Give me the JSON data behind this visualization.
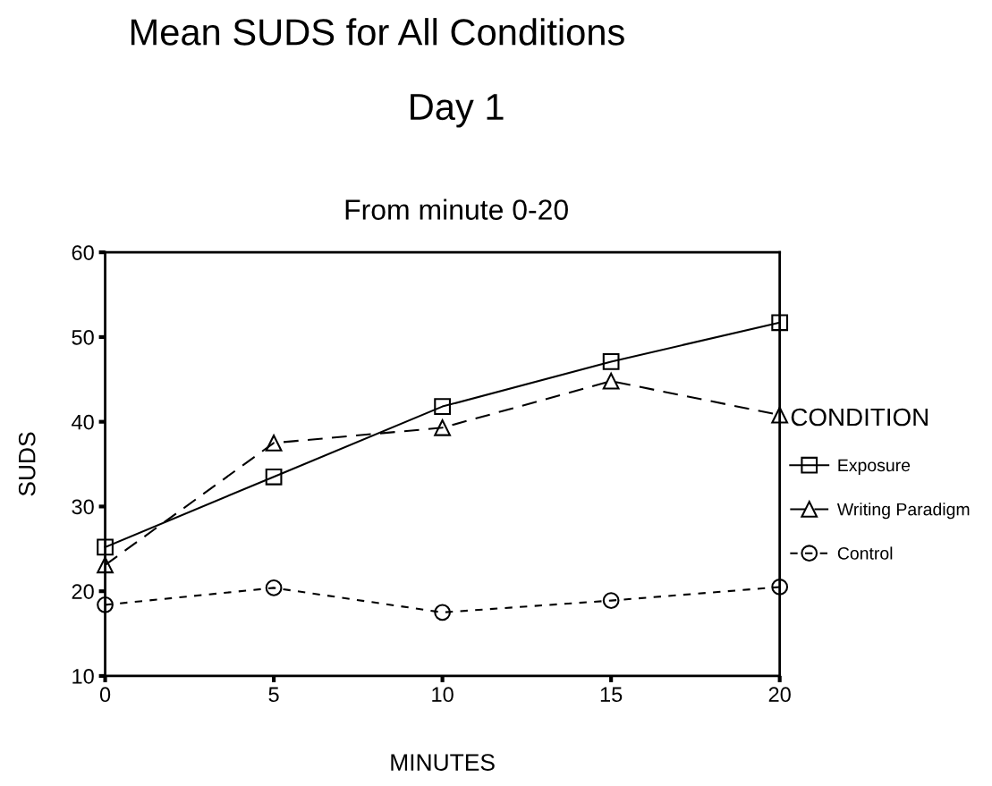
{
  "chart_data": {
    "type": "line",
    "title": "Mean SUDS for All Conditions",
    "subtitle": "Day 1",
    "annotations": [
      "From minute 0-20"
    ],
    "xlabel": "MINUTES",
    "ylabel": "SUDS",
    "legend_title": "CONDITION",
    "legend": "right",
    "x": [
      0,
      5,
      10,
      15,
      20
    ],
    "xlim": [
      0,
      20
    ],
    "xticks": [
      0,
      5,
      10,
      15,
      20
    ],
    "ylim": [
      10,
      60
    ],
    "yticks": [
      10,
      20,
      30,
      40,
      50,
      60
    ],
    "grid": false,
    "series": [
      {
        "name": "Exposure",
        "color": "#000000",
        "marker": "square",
        "line_style": "solid",
        "values": [
          25.2,
          33.5,
          41.8,
          47.1,
          51.7
        ]
      },
      {
        "name": "Writing Paradigm",
        "color": "#000000",
        "marker": "triangle",
        "line_style": "dashed",
        "values": [
          23.1,
          37.5,
          39.3,
          44.8,
          40.8
        ]
      },
      {
        "name": "Control",
        "color": "#000000",
        "marker": "circle",
        "line_style": "dotted",
        "values": [
          18.4,
          20.4,
          17.5,
          18.9,
          20.5
        ]
      }
    ]
  }
}
